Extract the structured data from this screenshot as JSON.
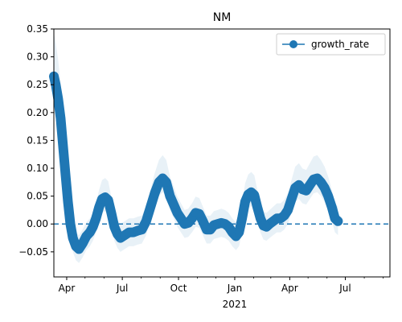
{
  "chart_data": {
    "type": "line",
    "title": "NM",
    "xlabel": "",
    "ylabel": "",
    "x_range": [
      "2020-03-11",
      "2021-09-12"
    ],
    "ylim": [
      -0.095,
      0.35
    ],
    "y_ticks": [
      -0.05,
      0.0,
      0.05,
      0.1,
      0.15,
      0.2,
      0.25,
      0.3,
      0.35
    ],
    "y_tick_labels": [
      "−0.05",
      "0.00",
      "0.05",
      "0.10",
      "0.15",
      "0.20",
      "0.25",
      "0.30",
      "0.35"
    ],
    "x_major_ticks": [
      {
        "date": "2020-04-01",
        "label": "Apr"
      },
      {
        "date": "2020-07-01",
        "label": "Jul"
      },
      {
        "date": "2020-10-01",
        "label": "Oct"
      },
      {
        "date": "2021-01-01",
        "label": "Jan"
      },
      {
        "date": "2021-04-01",
        "label": "Apr"
      },
      {
        "date": "2021-07-01",
        "label": "Jul"
      }
    ],
    "x_minor_ticks": [
      "2020-05-01",
      "2020-06-01",
      "2020-08-01",
      "2020-09-01",
      "2020-11-01",
      "2020-12-01",
      "2021-02-01",
      "2021-03-01",
      "2021-05-01",
      "2021-06-01",
      "2021-08-01",
      "2021-09-01"
    ],
    "year_label": {
      "date": "2021-01-01",
      "label": "2021"
    },
    "legend": {
      "position": "top-right",
      "entries": [
        "growth_rate"
      ]
    },
    "grid": false,
    "reference_line": {
      "y": 0.0,
      "style": "dashed"
    },
    "colors": {
      "line": "#1f77b4",
      "band": "#1f77b4"
    },
    "series": [
      {
        "name": "growth_rate",
        "band_width": 0.025,
        "points": [
          [
            "2020-03-11",
            0.265
          ],
          [
            "2020-03-14",
            0.25
          ],
          [
            "2020-03-18",
            0.225
          ],
          [
            "2020-03-22",
            0.19
          ],
          [
            "2020-03-26",
            0.14
          ],
          [
            "2020-03-30",
            0.09
          ],
          [
            "2020-04-03",
            0.04
          ],
          [
            "2020-04-07",
            0.0
          ],
          [
            "2020-04-11",
            -0.025
          ],
          [
            "2020-04-16",
            -0.04
          ],
          [
            "2020-04-21",
            -0.045
          ],
          [
            "2020-04-27",
            -0.035
          ],
          [
            "2020-05-03",
            -0.022
          ],
          [
            "2020-05-09",
            -0.015
          ],
          [
            "2020-05-14",
            -0.005
          ],
          [
            "2020-05-19",
            0.01
          ],
          [
            "2020-05-24",
            0.03
          ],
          [
            "2020-05-29",
            0.045
          ],
          [
            "2020-06-03",
            0.048
          ],
          [
            "2020-06-08",
            0.043
          ],
          [
            "2020-06-13",
            0.02
          ],
          [
            "2020-06-18",
            -0.005
          ],
          [
            "2020-06-23",
            -0.018
          ],
          [
            "2020-06-28",
            -0.025
          ],
          [
            "2020-07-05",
            -0.02
          ],
          [
            "2020-07-12",
            -0.015
          ],
          [
            "2020-07-19",
            -0.015
          ],
          [
            "2020-07-26",
            -0.012
          ],
          [
            "2020-08-02",
            -0.01
          ],
          [
            "2020-08-09",
            0.005
          ],
          [
            "2020-08-16",
            0.03
          ],
          [
            "2020-08-23",
            0.055
          ],
          [
            "2020-08-30",
            0.075
          ],
          [
            "2020-09-05",
            0.082
          ],
          [
            "2020-09-11",
            0.075
          ],
          [
            "2020-09-17",
            0.05
          ],
          [
            "2020-09-23",
            0.035
          ],
          [
            "2020-09-29",
            0.02
          ],
          [
            "2020-10-05",
            0.01
          ],
          [
            "2020-10-11",
            0.0
          ],
          [
            "2020-10-17",
            0.002
          ],
          [
            "2020-10-23",
            0.01
          ],
          [
            "2020-10-29",
            0.02
          ],
          [
            "2020-11-04",
            0.018
          ],
          [
            "2020-11-10",
            0.005
          ],
          [
            "2020-11-16",
            -0.01
          ],
          [
            "2020-11-22",
            -0.01
          ],
          [
            "2020-11-28",
            -0.002
          ],
          [
            "2020-12-04",
            0.0
          ],
          [
            "2020-12-10",
            0.002
          ],
          [
            "2020-12-16",
            0.0
          ],
          [
            "2020-12-22",
            -0.005
          ],
          [
            "2020-12-28",
            -0.015
          ],
          [
            "2021-01-03",
            -0.022
          ],
          [
            "2021-01-08",
            -0.015
          ],
          [
            "2021-01-13",
            0.01
          ],
          [
            "2021-01-18",
            0.04
          ],
          [
            "2021-01-23",
            0.053
          ],
          [
            "2021-01-28",
            0.057
          ],
          [
            "2021-02-02",
            0.052
          ],
          [
            "2021-02-07",
            0.03
          ],
          [
            "2021-02-12",
            0.01
          ],
          [
            "2021-02-17",
            -0.003
          ],
          [
            "2021-02-22",
            -0.005
          ],
          [
            "2021-02-27",
            0.0
          ],
          [
            "2021-03-05",
            0.005
          ],
          [
            "2021-03-11",
            0.01
          ],
          [
            "2021-03-17",
            0.01
          ],
          [
            "2021-03-23",
            0.015
          ],
          [
            "2021-03-29",
            0.025
          ],
          [
            "2021-04-04",
            0.045
          ],
          [
            "2021-04-10",
            0.065
          ],
          [
            "2021-04-16",
            0.07
          ],
          [
            "2021-04-22",
            0.062
          ],
          [
            "2021-04-28",
            0.06
          ],
          [
            "2021-05-04",
            0.07
          ],
          [
            "2021-05-10",
            0.08
          ],
          [
            "2021-05-16",
            0.082
          ],
          [
            "2021-05-22",
            0.075
          ],
          [
            "2021-05-28",
            0.065
          ],
          [
            "2021-06-03",
            0.05
          ],
          [
            "2021-06-09",
            0.03
          ],
          [
            "2021-06-14",
            0.01
          ],
          [
            "2021-06-19",
            0.005
          ]
        ]
      }
    ]
  }
}
